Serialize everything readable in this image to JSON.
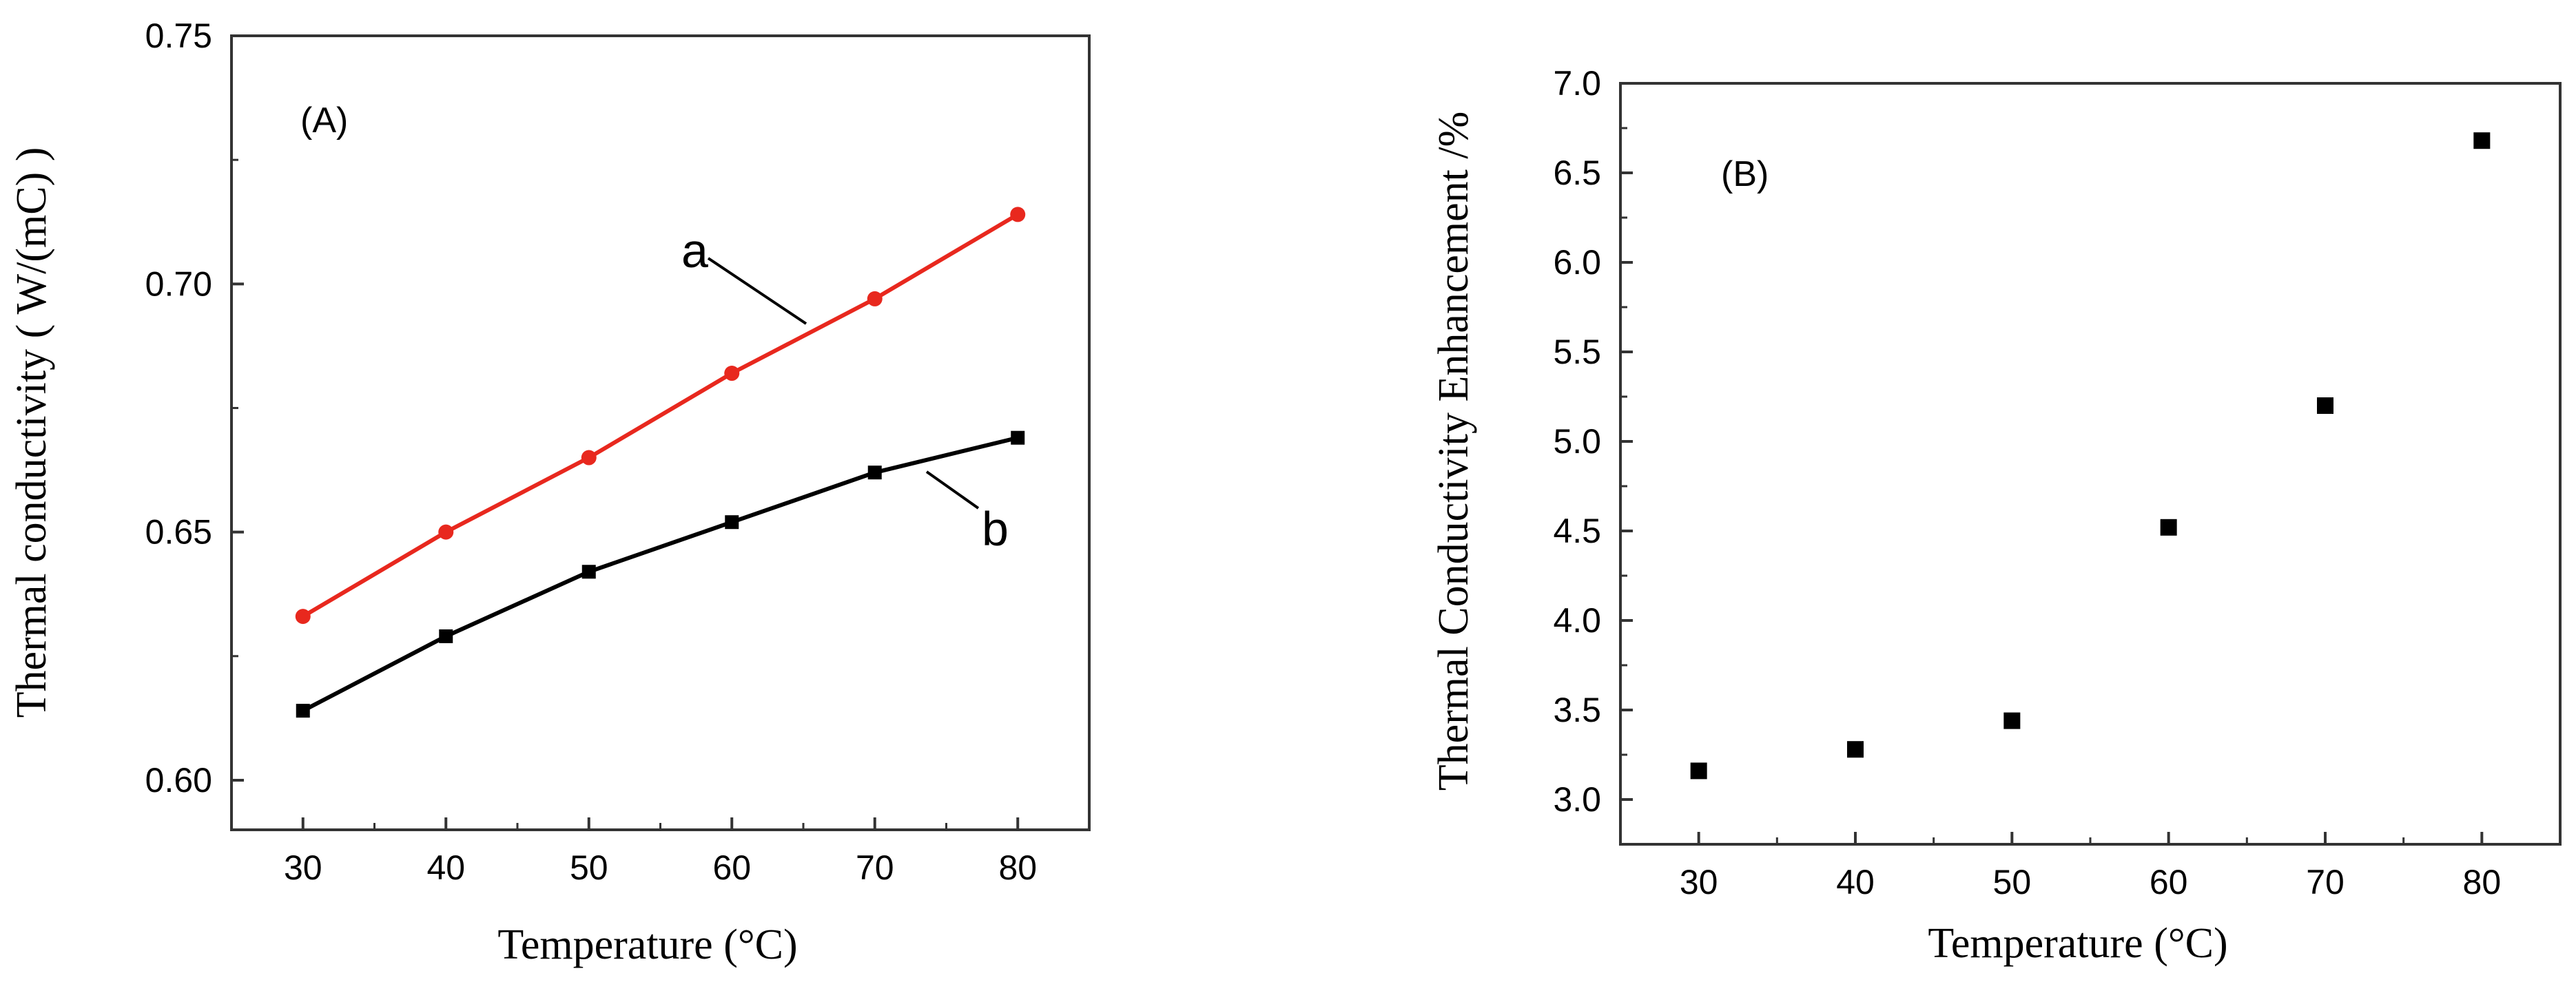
{
  "chart_data": [
    {
      "type": "line",
      "panel_label": "(A)",
      "xlabel": "Temperature (°C)",
      "ylabel": "Thermal conductivity ( W/(mC) )",
      "xlim": [
        25,
        85
      ],
      "ylim": [
        0.59,
        0.75
      ],
      "x_ticks": [
        "30",
        "40",
        "50",
        "60",
        "70",
        "80"
      ],
      "y_ticks": [
        "0.60",
        "0.65",
        "0.70",
        "0.75"
      ],
      "x": [
        30,
        40,
        50,
        60,
        70,
        80
      ],
      "series": [
        {
          "name": "a",
          "color": "#e8281e",
          "marker": "circle",
          "values": [
            0.633,
            0.65,
            0.665,
            0.682,
            0.697,
            0.714
          ]
        },
        {
          "name": "b",
          "color": "#000000",
          "marker": "square",
          "values": [
            0.614,
            0.629,
            0.642,
            0.652,
            0.662,
            0.669
          ]
        }
      ],
      "grid": false
    },
    {
      "type": "scatter",
      "panel_label": "(B)",
      "xlabel": "Temperature (°C)",
      "ylabel": "Thermal Conductivity Enhancement /%",
      "xlim": [
        25,
        85
      ],
      "ylim": [
        2.75,
        7.0
      ],
      "x_ticks": [
        "30",
        "40",
        "50",
        "60",
        "70",
        "80"
      ],
      "y_ticks": [
        "3.0",
        "3.5",
        "4.0",
        "4.5",
        "5.0",
        "5.5",
        "6.0",
        "6.5",
        "7.0"
      ],
      "x": [
        30,
        40,
        50,
        60,
        70,
        80
      ],
      "series": [
        {
          "color": "#000000",
          "marker": "square",
          "values": [
            3.16,
            3.28,
            3.44,
            4.52,
            5.2,
            6.68
          ]
        }
      ],
      "grid": false
    }
  ]
}
